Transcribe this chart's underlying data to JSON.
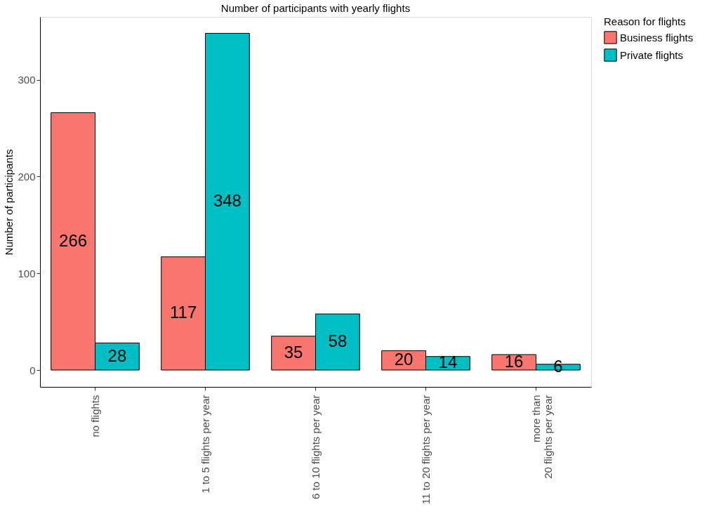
{
  "chart_data": {
    "type": "bar",
    "title": "Number of participants with yearly flights",
    "xlabel": null,
    "ylabel": "Number of participants",
    "legend_title": "Reason for flights",
    "categories": [
      "no flights",
      "1 to 5 flights per year",
      "6 to 10 flights per year",
      "11 to 20 flights per year",
      "more than\n20 flights per year"
    ],
    "series": [
      {
        "name": "Business flights",
        "color": "#f8766d",
        "values": [
          266,
          117,
          35,
          20,
          16
        ]
      },
      {
        "name": "Private flights",
        "color": "#00bfc4",
        "values": [
          28,
          348,
          58,
          14,
          6
        ]
      }
    ],
    "ylim": [
      -17.4,
      365
    ],
    "yticks": [
      0,
      100,
      200,
      300
    ],
    "grid": false,
    "legend": "right",
    "data_labels": true
  }
}
